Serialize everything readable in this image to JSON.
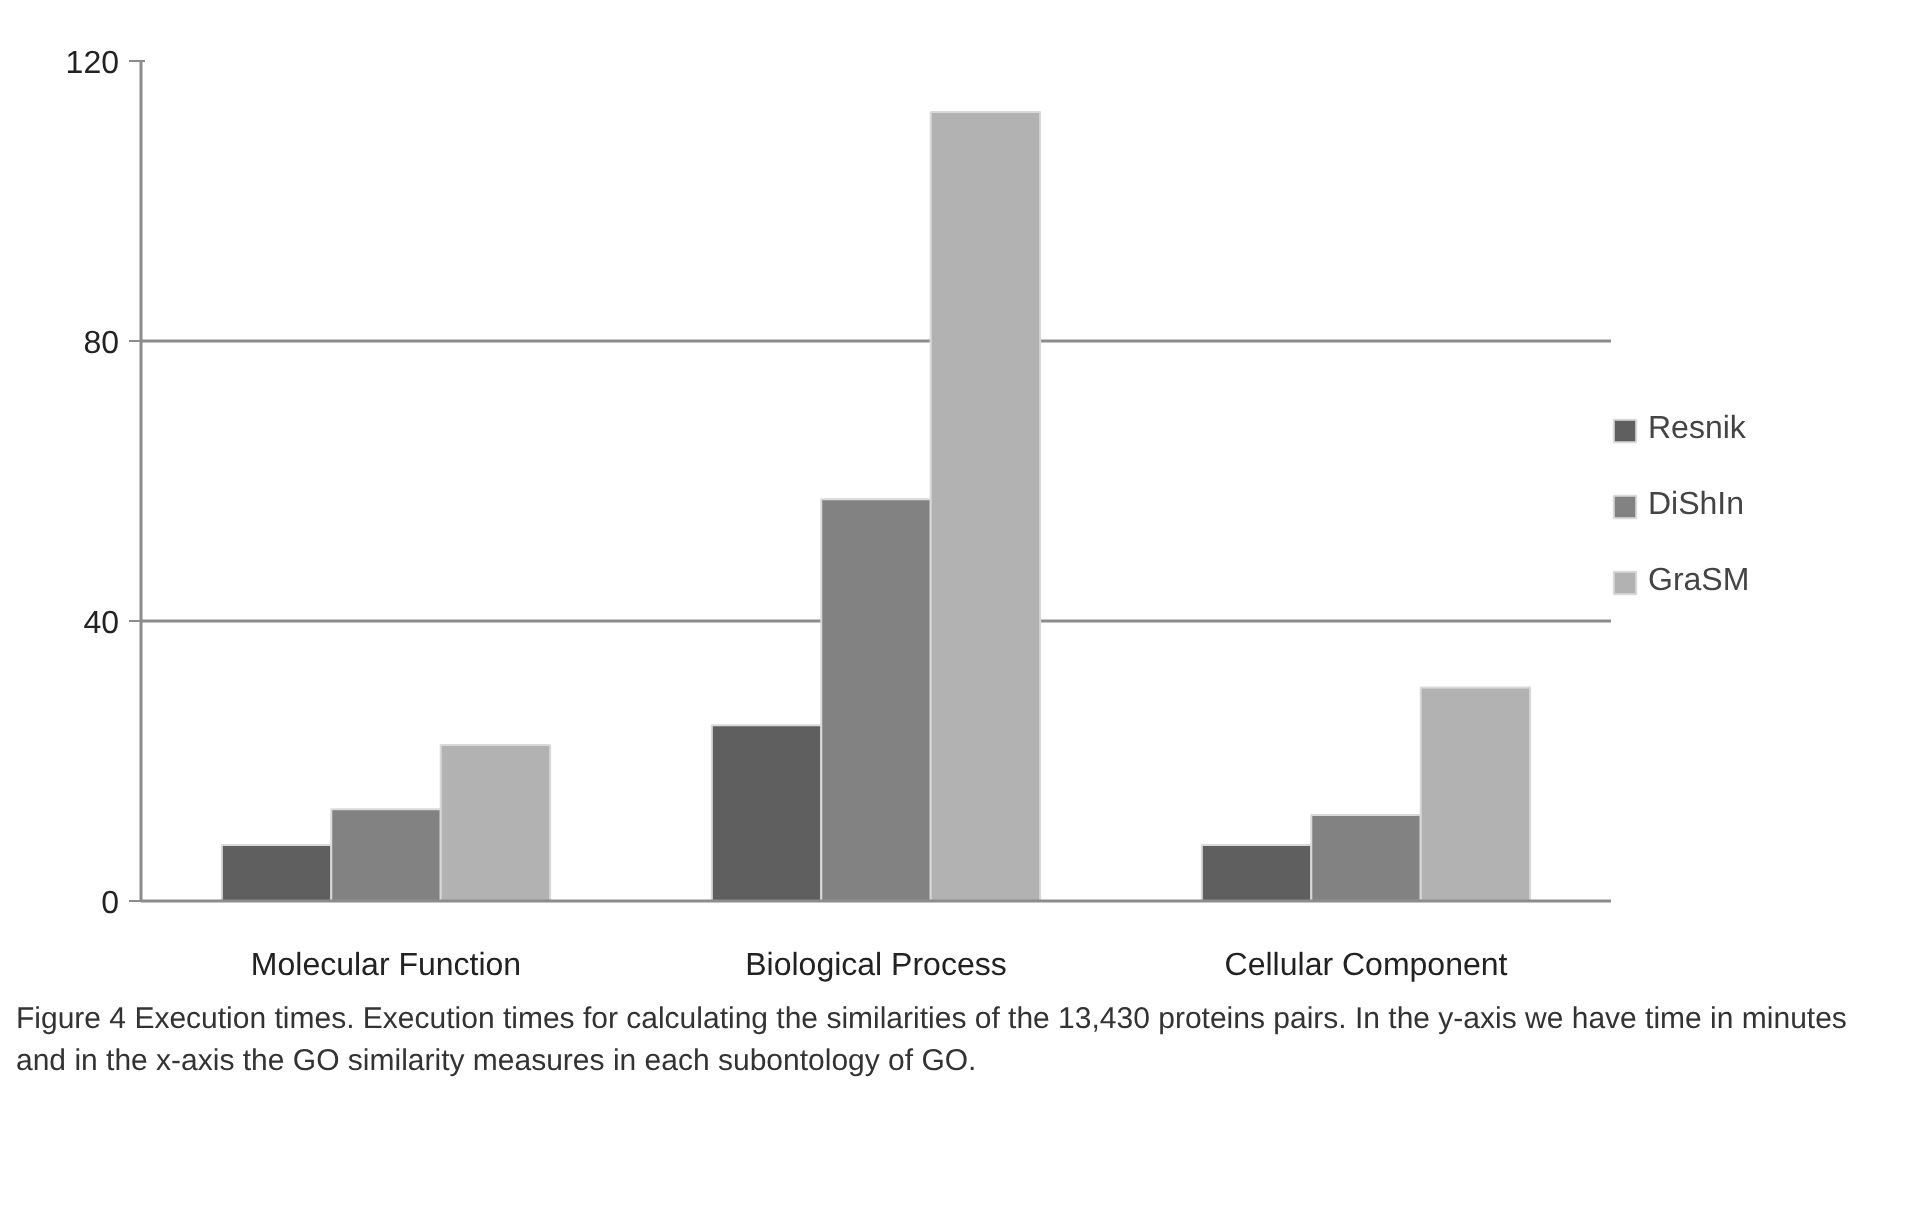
{
  "chart_data": {
    "type": "bar",
    "categories": [
      "Molecular Function",
      "Biological Process",
      "Cellular Component"
    ],
    "series": [
      {
        "name": "Resnik",
        "color": "#5f5f5f",
        "values": [
          8,
          25.1,
          8
        ]
      },
      {
        "name": "DiShIn",
        "color": "#828282",
        "values": [
          13.1,
          57.4,
          12.3
        ]
      },
      {
        "name": "GraSM",
        "color": "#b2b2b2",
        "values": [
          22.3,
          112.7,
          30.5
        ]
      }
    ],
    "ylim": [
      0,
      120
    ],
    "yticks": [
      0,
      40,
      80,
      120
    ],
    "grid": "y",
    "legend": "right",
    "annotations": [
      "Figure 4 Execution times. Execution times for calculating the similarities of the 13,430 proteins pairs. In the y-axis we have time in minutes and in the x-axis the GO similarity measures in each subontology of GO."
    ]
  }
}
